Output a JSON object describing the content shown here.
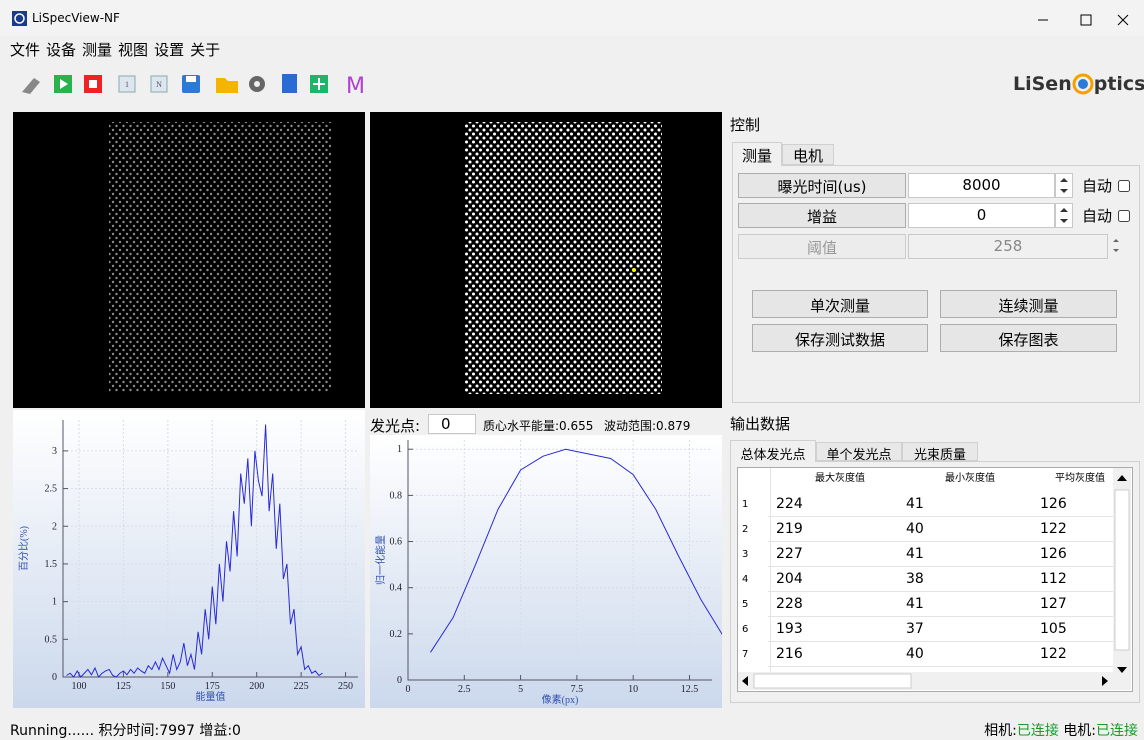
{
  "window": {
    "title": "LiSpecView-NF"
  },
  "menu": [
    "文件",
    "设备",
    "测量",
    "视图",
    "设置",
    "关于"
  ],
  "toolbar": {
    "single": "1",
    "multi": "N",
    "m": "M",
    "logo_left": "LiSen",
    "logo_right": "ptics"
  },
  "control": {
    "title": "控制",
    "tabs": [
      "测量",
      "电机"
    ],
    "exposure": {
      "label": "曝光时间(us)",
      "value": 8000,
      "auto": "自动"
    },
    "gain": {
      "label": "增益",
      "value": 0,
      "auto": "自动"
    },
    "threshold": {
      "label": "阈值",
      "value": 258
    },
    "buttons": [
      "单次测量",
      "连续测量",
      "保存测试数据",
      "保存图表"
    ]
  },
  "spot": {
    "label": "发光点:",
    "value": 0,
    "centroid": "质心水平能量:0.655",
    "range": "波动范围:0.879"
  },
  "output": {
    "title": "输出数据",
    "tabs": [
      "总体发光点",
      "单个发光点",
      "光束质量"
    ],
    "table": {
      "columns": [
        "最大灰度值",
        "最小灰度值",
        "平均灰度值"
      ],
      "row_numbers": [
        1,
        2,
        3,
        4,
        5,
        6,
        7
      ],
      "rows": [
        [
          224,
          41,
          126
        ],
        [
          219,
          40,
          122
        ],
        [
          227,
          41,
          126
        ],
        [
          204,
          38,
          112
        ],
        [
          228,
          41,
          127
        ],
        [
          193,
          37,
          105
        ],
        [
          216,
          40,
          122
        ]
      ]
    }
  },
  "status": {
    "left": "Running...... 积分时间:7997 增益:0",
    "camera_label": "相机:",
    "camera": "已连接",
    "motor_label": "电机:",
    "motor": "已连接"
  },
  "chart_data": [
    {
      "type": "line",
      "xlabel": "能量值",
      "ylabel": "百分比(%)",
      "x": [
        93,
        95,
        97,
        99,
        101,
        103,
        105,
        107,
        109,
        111,
        113,
        115,
        117,
        119,
        121,
        123,
        125,
        127,
        129,
        131,
        133,
        135,
        137,
        139,
        141,
        143,
        145,
        147,
        149,
        151,
        153,
        155,
        157,
        159,
        161,
        163,
        165,
        167,
        169,
        171,
        173,
        175,
        177,
        179,
        181,
        183,
        185,
        187,
        189,
        191,
        193,
        195,
        197,
        199,
        201,
        203,
        205,
        207,
        209,
        211,
        213,
        215,
        217,
        219,
        221,
        223,
        225,
        227,
        229,
        231,
        233,
        235,
        237
      ],
      "series": [
        {
          "color": "#2a2ad6",
          "values": [
            0.02,
            0.05,
            0.0,
            0.08,
            0.0,
            0.05,
            0.1,
            0.03,
            0.12,
            0.0,
            0.05,
            0.08,
            0.1,
            0.02,
            0.0,
            0.05,
            0.08,
            0.03,
            0.1,
            0.05,
            0.12,
            0.08,
            0.05,
            0.15,
            0.1,
            0.2,
            0.1,
            0.25,
            0.15,
            0.05,
            0.3,
            0.1,
            0.2,
            0.45,
            0.15,
            0.3,
            0.1,
            0.6,
            0.3,
            0.9,
            0.5,
            1.2,
            0.7,
            1.5,
            1.0,
            1.8,
            1.4,
            2.2,
            1.6,
            2.7,
            2.3,
            2.9,
            2.0,
            3.0,
            2.6,
            2.4,
            3.35,
            2.2,
            2.7,
            1.7,
            2.3,
            1.3,
            1.5,
            0.7,
            0.9,
            0.3,
            0.4,
            0.1,
            0.15,
            0.05,
            0.08,
            0.02,
            0.05
          ]
        }
      ],
      "xlim": [
        91,
        257
      ],
      "ylim": [
        0,
        3.41
      ],
      "xticks": [
        100,
        125,
        150,
        175,
        200,
        225,
        250
      ],
      "yticks": [
        0,
        0.5,
        1,
        1.5,
        2,
        2.5,
        3
      ],
      "grid": true
    },
    {
      "type": "line",
      "xlabel": "像素(px)",
      "ylabel": "归一化能量",
      "x": [
        1,
        2,
        3,
        4,
        5,
        6,
        7,
        8,
        9,
        10,
        11,
        12,
        13,
        14
      ],
      "series": [
        {
          "color": "#2a2ad6",
          "values": [
            0.12,
            0.27,
            0.5,
            0.74,
            0.91,
            0.97,
            1.0,
            0.98,
            0.96,
            0.89,
            0.74,
            0.54,
            0.35,
            0.19
          ]
        }
      ],
      "xlim": [
        0,
        13.5
      ],
      "ylim": [
        0,
        1.04
      ],
      "xticks": [
        0,
        2.5,
        5,
        7.5,
        10,
        12.5
      ],
      "yticks": [
        0,
        0.2,
        0.4,
        0.6,
        0.8,
        1
      ],
      "grid": true
    }
  ]
}
